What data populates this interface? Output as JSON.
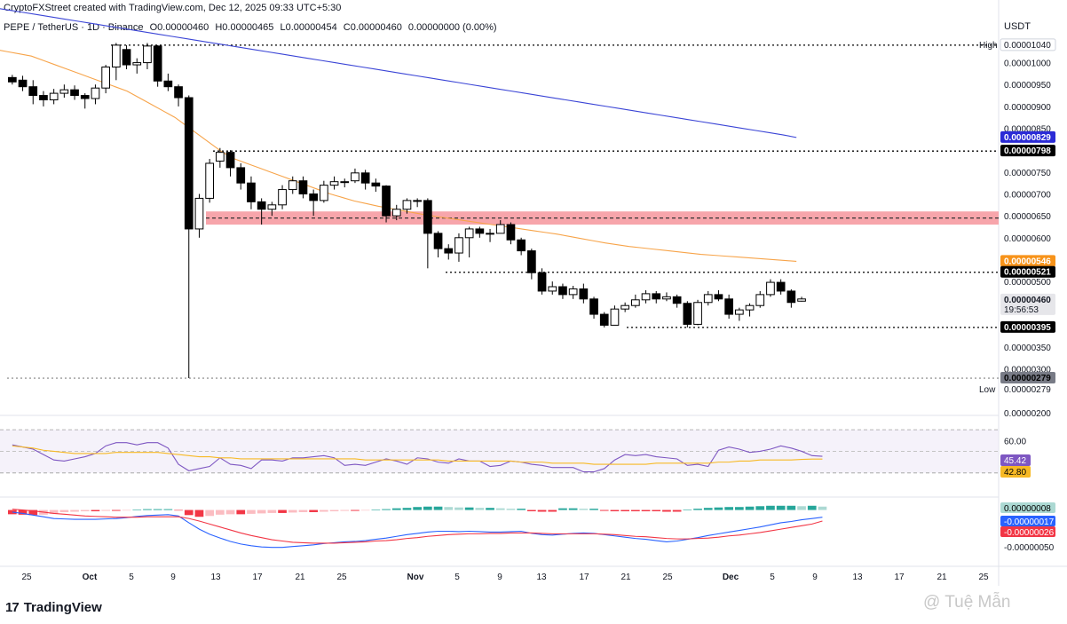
{
  "header": {
    "created_line": "CryptoFXStreet created with TradingView.com, Dec 12, 2025 09:33 UTC+5:30"
  },
  "symbol_bar": {
    "name": "PEPE / TetherUS · 1D · Binance",
    "open": "O0.00000460",
    "high": "H0.00000465",
    "low": "L0.00000454",
    "close": "C0.00000460",
    "change": "0.00000000 (0.00%)"
  },
  "price_axis": {
    "unit": "USDT",
    "ticks": [
      {
        "value": 2e-06,
        "label": "0.00000200"
      },
      {
        "value": 3e-06,
        "label": "0.00000300"
      },
      {
        "value": 3.5e-06,
        "label": "0.00000350"
      },
      {
        "value": 5e-06,
        "label": "0.00000500"
      },
      {
        "value": 5.5e-06,
        "label": "0.00000550"
      },
      {
        "value": 6e-06,
        "label": "0.00000600"
      },
      {
        "value": 6.5e-06,
        "label": "0.00000650"
      },
      {
        "value": 7e-06,
        "label": "0.00000700"
      },
      {
        "value": 7.5e-06,
        "label": "0.00000750"
      },
      {
        "value": 8.5e-06,
        "label": "0.00000850"
      },
      {
        "value": 9e-06,
        "label": "0.00000900"
      },
      {
        "value": 9.5e-06,
        "label": "0.00000950"
      },
      {
        "value": 1e-05,
        "label": "0.00001000"
      }
    ],
    "badges": [
      {
        "value": 1.04e-05,
        "label": "0.00001040",
        "prefix": "High",
        "bg": "#ffffff",
        "fg": "#131722",
        "border": "#cfd3dc"
      },
      {
        "value": 8.29e-06,
        "label": "0.00000829",
        "bg": "#2b2bd6",
        "fg": "#ffffff"
      },
      {
        "value": 7.98e-06,
        "label": "0.00000798",
        "bg": "#000000",
        "fg": "#ffffff"
      },
      {
        "value": 5.46e-06,
        "label": "0.00000546",
        "bg": "#f7931a",
        "fg": "#ffffff"
      },
      {
        "value": 5.21e-06,
        "label": "0.00000521",
        "bg": "#000000",
        "fg": "#ffffff"
      },
      {
        "value": 4.6e-06,
        "label": "0.00000460",
        "sub": "19:56:53",
        "bg": "#e6e6ea",
        "fg": "#131722"
      },
      {
        "value": 3.95e-06,
        "label": "0.00000395",
        "bg": "#000000",
        "fg": "#ffffff"
      },
      {
        "value": 2.79e-06,
        "label": "0.00000279",
        "bg": "#787b86",
        "fg": "#000000"
      },
      {
        "value": 2.79e-06,
        "label": "0.00000279",
        "prefix": "Low",
        "bg": "#ffffff",
        "fg": "#131722",
        "offset": 1
      }
    ]
  },
  "x_axis": {
    "labels": [
      "25",
      "Oct",
      "5",
      "9",
      "13",
      "17",
      "21",
      "25",
      "Nov",
      "5",
      "9",
      "13",
      "17",
      "21",
      "25",
      "Dec",
      "5",
      "9",
      "13",
      "17",
      "21",
      "25"
    ]
  },
  "rsi": {
    "level_label": "60.00",
    "rsi_label": "45.42",
    "rsi_color": "#7e57c2",
    "ma_label": "42.80",
    "ma_color": "#f7b924",
    "range": [
      20,
      75
    ],
    "values": [
      56,
      54,
      52,
      47,
      42,
      41,
      43,
      45,
      48,
      55,
      58,
      58,
      56,
      58,
      58,
      53,
      38,
      32,
      34,
      36,
      44,
      38,
      37,
      34,
      42,
      42,
      41,
      44,
      44,
      45,
      46,
      44,
      37,
      38,
      37,
      40,
      43,
      41,
      38,
      44,
      43,
      40,
      39,
      43,
      41,
      41,
      36,
      37,
      41,
      40,
      38,
      37,
      35,
      35,
      35,
      31,
      31,
      34,
      42,
      47,
      46,
      47,
      45,
      44,
      43,
      37,
      38,
      36,
      51,
      54,
      52,
      49,
      50,
      52,
      55,
      53,
      50,
      46,
      45.42
    ],
    "ma_values": [
      55,
      54,
      53,
      51,
      50,
      49,
      48,
      48,
      48,
      48,
      49,
      49,
      49,
      49,
      49,
      48,
      47,
      46,
      45,
      45,
      44,
      44,
      43,
      43,
      43,
      43,
      43,
      43,
      43,
      43,
      43,
      43,
      43,
      43,
      42,
      42,
      42,
      42,
      42,
      42,
      42,
      42,
      41,
      41,
      41,
      41,
      41,
      41,
      41,
      40,
      40,
      40,
      39,
      39,
      39,
      39,
      38,
      38,
      38,
      38,
      38,
      38,
      39,
      39,
      39,
      39,
      39,
      39,
      40,
      40,
      41,
      41,
      42,
      42,
      42,
      42,
      42.5,
      42.8,
      42.8
    ]
  },
  "macd": {
    "histogram_label": "0.00000008",
    "histogram_color": "#26a69a",
    "macd_label": "-0.00000017",
    "macd_color": "#2962ff",
    "signal_label": "-0.00000026",
    "signal_color": "#f23645",
    "level_label": "-0.00000050",
    "range": [
      -1.2,
      0.2
    ],
    "histogram": [
      -0.1,
      -0.11,
      -0.12,
      -0.11,
      -0.09,
      -0.05,
      -0.04,
      -0.03,
      -0.03,
      -0.02,
      -0.02,
      -0.01,
      0.01,
      0.02,
      0.02,
      0.02,
      -0.01,
      -0.12,
      -0.16,
      -0.14,
      -0.11,
      -0.1,
      -0.1,
      -0.09,
      -0.08,
      -0.07,
      -0.07,
      -0.06,
      -0.05,
      -0.05,
      -0.04,
      -0.03,
      -0.02,
      -0.02,
      -0.01,
      0.01,
      0.02,
      0.04,
      0.05,
      0.07,
      0.08,
      0.08,
      0.07,
      0.06,
      0.06,
      0.05,
      0.05,
      0.04,
      0.03,
      0.03,
      -0.03,
      -0.04,
      -0.04,
      0.04,
      0.04,
      0.03,
      0.03,
      -0.02,
      -0.03,
      -0.03,
      -0.03,
      -0.03,
      -0.03,
      -0.04,
      -0.04,
      0.01,
      0.03,
      0.05,
      0.06,
      0.07,
      0.07,
      0.08,
      0.09,
      0.1,
      0.1,
      0.1,
      0.09,
      0.1,
      0.08
    ],
    "macd_line": [
      -0.05,
      -0.08,
      -0.12,
      -0.16,
      -0.2,
      -0.21,
      -0.22,
      -0.22,
      -0.22,
      -0.21,
      -0.2,
      -0.18,
      -0.15,
      -0.13,
      -0.12,
      -0.11,
      -0.14,
      -0.3,
      -0.45,
      -0.57,
      -0.66,
      -0.74,
      -0.8,
      -0.84,
      -0.87,
      -0.88,
      -0.88,
      -0.86,
      -0.84,
      -0.82,
      -0.79,
      -0.77,
      -0.75,
      -0.74,
      -0.72,
      -0.69,
      -0.66,
      -0.62,
      -0.58,
      -0.55,
      -0.52,
      -0.5,
      -0.5,
      -0.51,
      -0.5,
      -0.51,
      -0.52,
      -0.52,
      -0.51,
      -0.5,
      -0.55,
      -0.58,
      -0.59,
      -0.57,
      -0.55,
      -0.54,
      -0.55,
      -0.58,
      -0.61,
      -0.64,
      -0.67,
      -0.69,
      -0.72,
      -0.75,
      -0.73,
      -0.69,
      -0.65,
      -0.6,
      -0.56,
      -0.52,
      -0.48,
      -0.44,
      -0.4,
      -0.35,
      -0.3,
      -0.27,
      -0.23,
      -0.2,
      -0.17
    ],
    "signal_line": [
      0.02,
      0.0,
      -0.02,
      -0.05,
      -0.08,
      -0.1,
      -0.12,
      -0.14,
      -0.15,
      -0.16,
      -0.17,
      -0.17,
      -0.17,
      -0.16,
      -0.16,
      -0.16,
      -0.16,
      -0.2,
      -0.26,
      -0.33,
      -0.4,
      -0.47,
      -0.54,
      -0.6,
      -0.65,
      -0.7,
      -0.73,
      -0.76,
      -0.77,
      -0.78,
      -0.78,
      -0.78,
      -0.77,
      -0.76,
      -0.75,
      -0.73,
      -0.72,
      -0.7,
      -0.67,
      -0.65,
      -0.62,
      -0.6,
      -0.58,
      -0.57,
      -0.56,
      -0.56,
      -0.55,
      -0.55,
      -0.54,
      -0.54,
      -0.54,
      -0.55,
      -0.56,
      -0.56,
      -0.56,
      -0.56,
      -0.56,
      -0.57,
      -0.58,
      -0.6,
      -0.62,
      -0.63,
      -0.65,
      -0.67,
      -0.68,
      -0.68,
      -0.67,
      -0.66,
      -0.64,
      -0.61,
      -0.59,
      -0.56,
      -0.53,
      -0.49,
      -0.45,
      -0.41,
      -0.37,
      -0.33,
      -0.26
    ]
  },
  "chart_data": {
    "type": "candlestick",
    "title": "PEPE / TetherUS · 1D · Binance",
    "ylabel": "USDT",
    "ylim": [
      2e-06,
      1.06e-05
    ],
    "x_labels": [
      "25",
      "Oct",
      "5",
      "9",
      "13",
      "17",
      "21",
      "25",
      "Nov",
      "5",
      "9",
      "13",
      "17",
      "21",
      "25",
      "Dec",
      "5",
      "9",
      "13",
      "17",
      "21",
      "25"
    ],
    "candles": [
      [
        966,
        956,
        972,
        950
      ],
      [
        960,
        945,
        970,
        935
      ],
      [
        945,
        925,
        960,
        905
      ],
      [
        925,
        915,
        935,
        900
      ],
      [
        915,
        930,
        940,
        905
      ],
      [
        930,
        938,
        950,
        920
      ],
      [
        938,
        925,
        948,
        915
      ],
      [
        925,
        918,
        930,
        895
      ],
      [
        918,
        942,
        950,
        905
      ],
      [
        942,
        990,
        995,
        930
      ],
      [
        990,
        1040,
        1045,
        960
      ],
      [
        1030,
        995,
        1040,
        985
      ],
      [
        995,
        1000,
        1010,
        975
      ],
      [
        1000,
        1038,
        1045,
        985
      ],
      [
        1038,
        958,
        1040,
        945
      ],
      [
        958,
        945,
        975,
        935
      ],
      [
        945,
        920,
        950,
        900
      ],
      [
        920,
        620,
        925,
        279
      ],
      [
        620,
        690,
        700,
        600
      ],
      [
        690,
        770,
        780,
        680
      ],
      [
        775,
        795,
        805,
        760
      ],
      [
        795,
        760,
        800,
        740
      ],
      [
        760,
        725,
        770,
        710
      ],
      [
        725,
        682,
        740,
        665
      ],
      [
        682,
        665,
        690,
        630
      ],
      [
        665,
        675,
        682,
        650
      ],
      [
        675,
        710,
        720,
        665
      ],
      [
        710,
        730,
        740,
        700
      ],
      [
        730,
        700,
        740,
        690
      ],
      [
        700,
        685,
        710,
        650
      ],
      [
        685,
        720,
        730,
        680
      ],
      [
        720,
        728,
        740,
        710
      ],
      [
        728,
        726,
        735,
        715
      ],
      [
        730,
        748,
        758,
        725
      ],
      [
        748,
        725,
        755,
        710
      ],
      [
        725,
        718,
        735,
        705
      ],
      [
        718,
        650,
        720,
        635
      ],
      [
        650,
        665,
        675,
        640
      ],
      [
        665,
        685,
        690,
        655
      ],
      [
        685,
        685,
        690,
        670
      ],
      [
        685,
        610,
        690,
        530
      ],
      [
        610,
        575,
        615,
        555
      ],
      [
        575,
        565,
        585,
        550
      ],
      [
        565,
        600,
        610,
        545
      ],
      [
        600,
        620,
        625,
        555
      ],
      [
        620,
        610,
        625,
        600
      ],
      [
        610,
        610,
        620,
        590
      ],
      [
        610,
        630,
        640,
        615
      ],
      [
        630,
        595,
        635,
        585
      ],
      [
        595,
        570,
        600,
        560
      ],
      [
        570,
        520,
        575,
        505
      ],
      [
        520,
        478,
        530,
        470
      ],
      [
        478,
        488,
        500,
        470
      ],
      [
        488,
        470,
        495,
        460
      ],
      [
        470,
        483,
        490,
        460
      ],
      [
        483,
        460,
        495,
        450
      ],
      [
        460,
        425,
        465,
        415
      ],
      [
        425,
        400,
        430,
        395
      ],
      [
        400,
        437,
        445,
        400
      ],
      [
        437,
        445,
        452,
        430
      ],
      [
        445,
        458,
        470,
        440
      ],
      [
        458,
        472,
        480,
        450
      ],
      [
        472,
        460,
        478,
        450
      ],
      [
        460,
        465,
        475,
        455
      ],
      [
        465,
        450,
        470,
        440
      ],
      [
        450,
        402,
        455,
        395
      ],
      [
        402,
        452,
        458,
        400
      ],
      [
        452,
        470,
        478,
        445
      ],
      [
        470,
        460,
        480,
        455
      ],
      [
        460,
        425,
        470,
        415
      ],
      [
        425,
        435,
        440,
        410
      ],
      [
        435,
        445,
        450,
        420
      ],
      [
        445,
        470,
        478,
        440
      ],
      [
        470,
        498,
        505,
        465
      ],
      [
        498,
        478,
        505,
        470
      ],
      [
        478,
        452,
        482,
        440
      ],
      [
        455,
        460,
        465,
        454
      ]
    ],
    "ma50": [
      1030,
      1025,
      1020,
      1015,
      1005,
      995,
      985,
      975,
      965,
      955,
      945,
      935,
      920,
      905,
      890,
      875,
      855,
      835,
      815,
      795,
      780,
      770,
      760,
      750,
      740,
      730,
      720,
      710,
      700,
      692,
      684,
      678,
      672,
      667,
      662,
      657,
      652,
      648,
      644,
      640,
      636,
      632,
      628,
      624,
      620,
      616,
      612,
      608,
      603,
      598,
      593,
      588,
      584,
      580,
      577,
      574,
      571,
      568,
      565,
      562,
      560,
      558,
      556,
      554,
      552,
      550,
      548,
      546
    ],
    "ma200": [
      1125,
      1120,
      1115,
      1110,
      1105,
      1100,
      1095,
      1090,
      1085,
      1080,
      1075,
      1070,
      1065,
      1060,
      1055,
      1050,
      1045,
      1040,
      1035,
      1030,
      1025,
      1020,
      1015,
      1010,
      1005,
      1000,
      995,
      990,
      985,
      980,
      975,
      970,
      965,
      960,
      955,
      950,
      945,
      940,
      935,
      930,
      925,
      920,
      915,
      910,
      905,
      900,
      895,
      890,
      885,
      880,
      875,
      870,
      865,
      860,
      855,
      850,
      845,
      840,
      835,
      829
    ],
    "price_scale": 1e-08,
    "resistance_zone": [
      6.3e-06,
      6.6e-06
    ],
    "levels": [
      1.04e-05,
      7.98e-06,
      5.21e-06,
      3.95e-06,
      2.79e-06
    ]
  },
  "branding": {
    "logo_mark": "17",
    "logo_text": "TradingView",
    "watermark": "@ Tuệ Mẫn"
  }
}
